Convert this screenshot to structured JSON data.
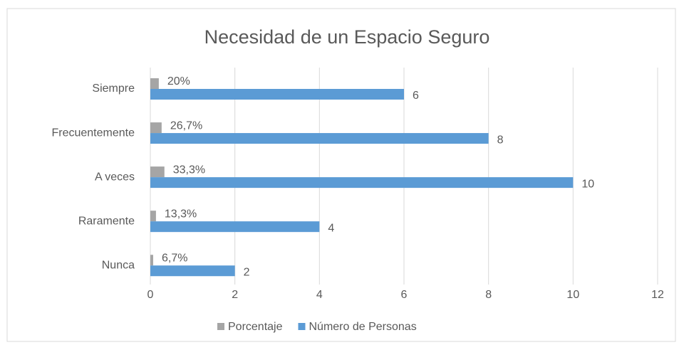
{
  "chart_data": {
    "type": "hbar",
    "title": "Necesidad de un Espacio Seguro",
    "categories": [
      "Siempre",
      "Frecuentemente",
      "A veces",
      "Raramente",
      "Nunca"
    ],
    "series": [
      {
        "name": "Porcentaje",
        "color": "#a5a5a5",
        "values": [
          0.2,
          0.267,
          0.333,
          0.133,
          0.067
        ],
        "value_labels": [
          "20%",
          "26,7%",
          "33,3%",
          "13,3%",
          "6,7%"
        ]
      },
      {
        "name": "Número de Personas",
        "color": "#5b9bd5",
        "values": [
          6,
          8,
          10,
          4,
          2
        ]
      }
    ],
    "xlim": [
      0,
      12
    ],
    "xticks": [
      0,
      2,
      4,
      6,
      8,
      10,
      12
    ],
    "grid": true,
    "legend": "bottom"
  }
}
